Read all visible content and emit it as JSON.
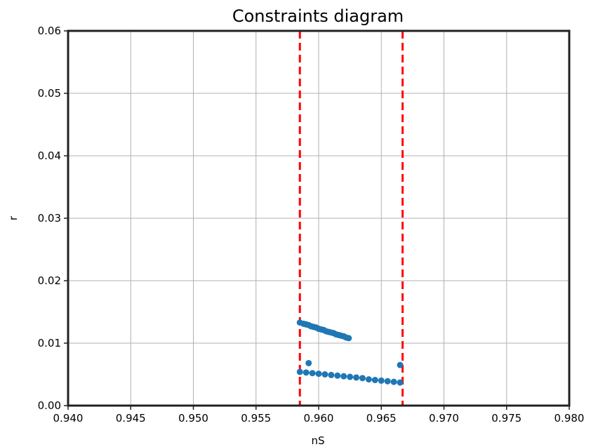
{
  "chart_data": {
    "type": "scatter",
    "title": "Constraints diagram",
    "xlabel": "nS",
    "ylabel": "r",
    "xlim": [
      0.94,
      0.98
    ],
    "ylim": [
      0.0,
      0.06
    ],
    "x_ticks": [
      "0.940",
      "0.945",
      "0.950",
      "0.955",
      "0.960",
      "0.965",
      "0.970",
      "0.975",
      "0.980"
    ],
    "y_ticks": [
      "0.00",
      "0.01",
      "0.02",
      "0.03",
      "0.04",
      "0.05",
      "0.06"
    ],
    "grid": true,
    "series": [
      {
        "color": "#1f77b4",
        "points": [
          [
            0.9585,
            0.0133
          ],
          [
            0.9588,
            0.0131
          ],
          [
            0.959,
            0.013
          ],
          [
            0.9592,
            0.0129
          ],
          [
            0.9594,
            0.0127
          ],
          [
            0.9596,
            0.0126
          ],
          [
            0.9598,
            0.0125
          ],
          [
            0.96,
            0.0123
          ],
          [
            0.9602,
            0.0122
          ],
          [
            0.9604,
            0.0121
          ],
          [
            0.9606,
            0.0119
          ],
          [
            0.9608,
            0.0118
          ],
          [
            0.961,
            0.0117
          ],
          [
            0.9612,
            0.0116
          ],
          [
            0.9614,
            0.0114
          ],
          [
            0.9616,
            0.0113
          ],
          [
            0.9618,
            0.0112
          ],
          [
            0.962,
            0.0111
          ],
          [
            0.9622,
            0.0109
          ],
          [
            0.9624,
            0.0108
          ],
          [
            0.9585,
            0.0054
          ],
          [
            0.959,
            0.0053
          ],
          [
            0.9595,
            0.0052
          ],
          [
            0.96,
            0.0051
          ],
          [
            0.9605,
            0.005
          ],
          [
            0.961,
            0.0049
          ],
          [
            0.9615,
            0.0048
          ],
          [
            0.962,
            0.0047
          ],
          [
            0.9625,
            0.0046
          ],
          [
            0.963,
            0.0045
          ],
          [
            0.9635,
            0.0044
          ],
          [
            0.964,
            0.0042
          ],
          [
            0.9645,
            0.0041
          ],
          [
            0.965,
            0.004
          ],
          [
            0.9655,
            0.0039
          ],
          [
            0.966,
            0.0038
          ],
          [
            0.9665,
            0.0037
          ],
          [
            0.9592,
            0.0068
          ],
          [
            0.9665,
            0.0065
          ]
        ]
      }
    ],
    "vlines": [
      {
        "x": 0.9585,
        "color": "#ff0000",
        "style": "dashed"
      },
      {
        "x": 0.9667,
        "color": "#ff0000",
        "style": "dashed"
      }
    ]
  }
}
